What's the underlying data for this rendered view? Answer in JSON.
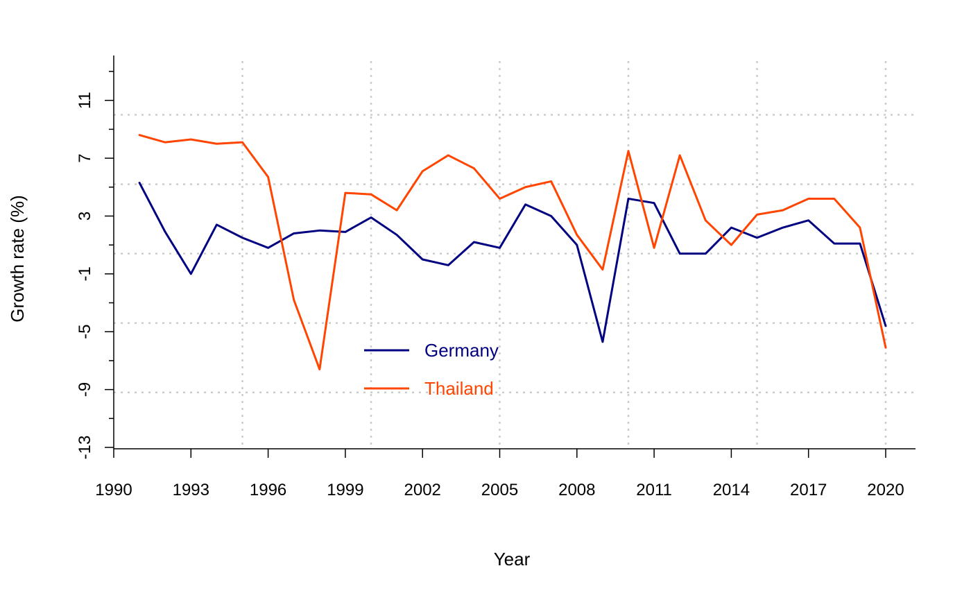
{
  "chart_data": {
    "type": "line",
    "title": "",
    "xlabel": "Year",
    "ylabel": "Growth rate (%)",
    "x": [
      1991,
      1992,
      1993,
      1994,
      1995,
      1996,
      1997,
      1998,
      1999,
      2000,
      2001,
      2002,
      2003,
      2004,
      2005,
      2006,
      2007,
      2008,
      2009,
      2010,
      2011,
      2012,
      2013,
      2014,
      2015,
      2016,
      2017,
      2018,
      2019,
      2020
    ],
    "xlim": [
      1990,
      2020
    ],
    "ylim": [
      -13,
      13
    ],
    "xticks": [
      1990,
      1993,
      1996,
      1999,
      2002,
      2005,
      2008,
      2011,
      2014,
      2017,
      2020
    ],
    "xtick_labels": [
      "1990",
      "1993",
      "1996",
      "1999",
      "2002",
      "2005",
      "2008",
      "2011",
      "2014",
      "2017",
      "2020"
    ],
    "yticks": [
      -13,
      -9,
      -5,
      -1,
      3,
      7,
      11
    ],
    "ytick_labels": [
      "-13",
      "-9",
      "-5",
      "-1",
      "3",
      "7",
      "11"
    ],
    "yticks_minor": [
      -11,
      -7,
      -3,
      1,
      5,
      9,
      13
    ],
    "grid": {
      "vertical": [
        1995,
        2000,
        2005,
        2010,
        2015,
        2020
      ],
      "horizontal": [
        -9.2,
        -4.4,
        0.4,
        5.2,
        10.0
      ],
      "color": "#cccccc",
      "style": "dotted"
    },
    "legend_position": "center-bottom",
    "series": [
      {
        "name": "Germany",
        "color": "#000080",
        "values": [
          5.3,
          1.9,
          -1.0,
          2.4,
          1.5,
          0.8,
          1.8,
          2.0,
          1.9,
          2.9,
          1.7,
          0.0,
          -0.4,
          1.2,
          0.8,
          3.8,
          3.0,
          1.0,
          -5.7,
          4.2,
          3.9,
          0.4,
          0.4,
          2.2,
          1.5,
          2.2,
          2.7,
          1.1,
          1.1,
          -4.6
        ]
      },
      {
        "name": "Thailand",
        "color": "#ff4500",
        "values": [
          8.6,
          8.1,
          8.3,
          8.0,
          8.1,
          5.7,
          -2.8,
          -7.6,
          4.6,
          4.5,
          3.4,
          6.1,
          7.2,
          6.3,
          4.2,
          5.0,
          5.4,
          1.7,
          -0.7,
          7.5,
          0.8,
          7.2,
          2.7,
          1.0,
          3.1,
          3.4,
          4.2,
          4.2,
          2.2,
          -6.1
        ]
      }
    ]
  }
}
